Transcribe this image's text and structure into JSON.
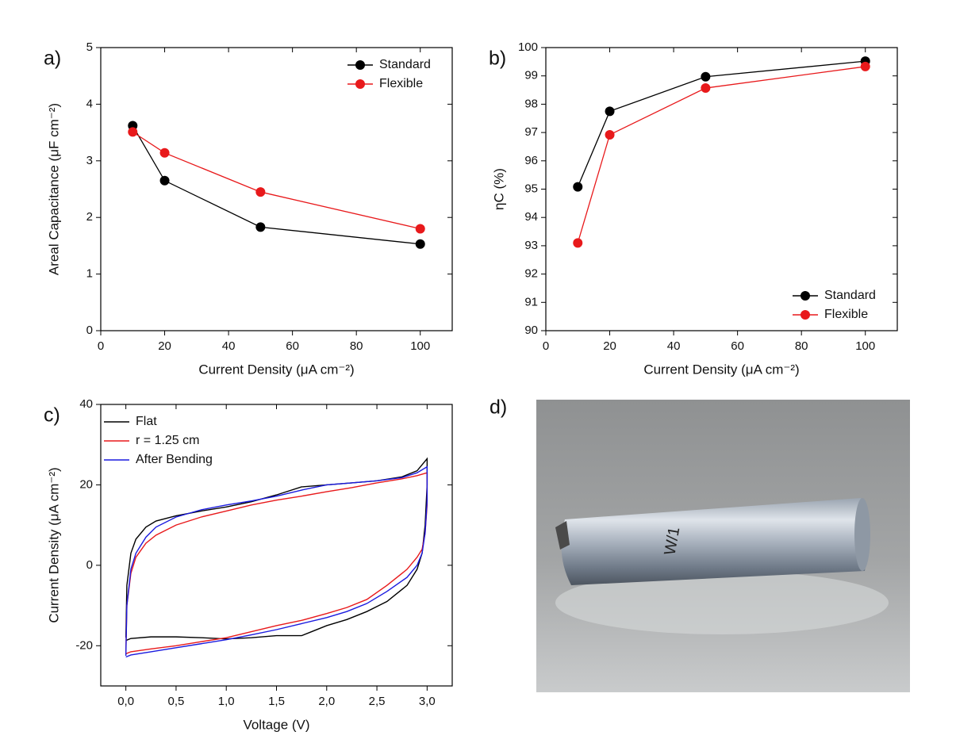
{
  "chart_data": [
    {
      "type": "line",
      "panel_label": "a)",
      "xlabel": "Current Density (μA cm⁻²)",
      "ylabel": "Areal Capacitance (μF cm⁻²)",
      "x": [
        10,
        20,
        50,
        100
      ],
      "series": [
        {
          "name": "Standard",
          "color": "#000000",
          "values": [
            3.62,
            2.65,
            1.83,
            1.53
          ]
        },
        {
          "name": "Flexible",
          "color": "#e8191b",
          "values": [
            3.51,
            3.14,
            2.45,
            1.8
          ]
        }
      ],
      "xlim": [
        0,
        110
      ],
      "xticks": [
        0,
        20,
        40,
        60,
        80,
        100
      ],
      "ylim": [
        0,
        5
      ],
      "yticks": [
        0,
        1,
        2,
        3,
        4,
        5
      ],
      "markers": true,
      "legend": "upper right"
    },
    {
      "type": "line",
      "panel_label": "b)",
      "xlabel": "Current Density (μA cm⁻²)",
      "ylabel": "ηC (%)",
      "x": [
        10,
        20,
        50,
        100
      ],
      "series": [
        {
          "name": "Standard",
          "color": "#000000",
          "values": [
            95.08,
            97.75,
            98.97,
            99.52
          ]
        },
        {
          "name": "Flexible",
          "color": "#e8191b",
          "values": [
            93.1,
            96.92,
            98.57,
            99.33
          ]
        }
      ],
      "xlim": [
        0,
        110
      ],
      "xticks": [
        0,
        20,
        40,
        60,
        80,
        100
      ],
      "ylim": [
        90,
        100
      ],
      "yticks": [
        90,
        91,
        92,
        93,
        94,
        95,
        96,
        97,
        98,
        99,
        100
      ],
      "markers": true,
      "legend": "lower right"
    },
    {
      "type": "line",
      "panel_label": "c)",
      "xlabel": "Voltage (V)",
      "ylabel": "Current Density (μA cm⁻²)",
      "series": [
        {
          "name": "Flat",
          "color": "#000000",
          "x": [
            0,
            0.01,
            0.05,
            0.1,
            0.2,
            0.3,
            0.5,
            0.75,
            1.0,
            1.25,
            1.5,
            1.75,
            2.0,
            2.25,
            2.5,
            2.75,
            2.9,
            3.0,
            3.0,
            2.98,
            2.95,
            2.9,
            2.8,
            2.6,
            2.4,
            2.2,
            2.0,
            1.85,
            1.75,
            1.65,
            1.5,
            1.25,
            1.0,
            0.75,
            0.5,
            0.25,
            0.05,
            0
          ],
          "values": [
            -18,
            -5,
            3,
            6.5,
            9.5,
            11,
            12.3,
            13.5,
            14.5,
            15.8,
            17.5,
            19.5,
            20,
            20.5,
            21,
            22,
            23.5,
            26.5,
            20,
            10,
            3,
            -1,
            -5,
            -9,
            -11.5,
            -13.5,
            -15,
            -16.5,
            -17.5,
            -17.5,
            -17.5,
            -18,
            -18.3,
            -18,
            -17.8,
            -17.8,
            -18.2,
            -18.7
          ]
        },
        {
          "name": "r = 1.25 cm",
          "color": "#e8191b",
          "x": [
            0,
            0.01,
            0.05,
            0.1,
            0.2,
            0.3,
            0.5,
            0.75,
            1.0,
            1.25,
            1.5,
            1.75,
            2.0,
            2.25,
            2.5,
            2.75,
            2.9,
            3.0,
            3.0,
            2.98,
            2.95,
            2.9,
            2.8,
            2.6,
            2.4,
            2.2,
            2.0,
            1.75,
            1.5,
            1.25,
            1.0,
            0.75,
            0.5,
            0.25,
            0.05,
            0
          ],
          "values": [
            -21.5,
            -10,
            -2,
            2,
            5.5,
            7.5,
            10,
            12,
            13.5,
            15,
            16.2,
            17.2,
            18.3,
            19.3,
            20.5,
            21.5,
            22.3,
            23,
            15,
            8,
            4,
            2,
            -1,
            -5,
            -8.5,
            -10.5,
            -12,
            -13.7,
            -15,
            -16.5,
            -18,
            -19,
            -20,
            -20.8,
            -21.5,
            -22
          ]
        },
        {
          "name": "After Bending",
          "color": "#1a1adf",
          "x": [
            0,
            0.01,
            0.05,
            0.1,
            0.2,
            0.3,
            0.5,
            0.75,
            1.0,
            1.25,
            1.5,
            1.75,
            2.0,
            2.25,
            2.5,
            2.75,
            2.9,
            3.0,
            3.0,
            2.98,
            2.95,
            2.9,
            2.8,
            2.6,
            2.4,
            2.2,
            2.0,
            1.75,
            1.5,
            1.25,
            1.0,
            0.75,
            0.5,
            0.25,
            0.05,
            0
          ],
          "values": [
            -22.5,
            -10,
            -1,
            3,
            7,
            9.5,
            12,
            13.8,
            15,
            16,
            17.2,
            18.7,
            20,
            20.5,
            21,
            21.8,
            23,
            24.5,
            16,
            8,
            3,
            0,
            -3,
            -6.5,
            -9.5,
            -11.5,
            -13,
            -14.5,
            -16,
            -17.3,
            -18.5,
            -19.5,
            -20.5,
            -21.5,
            -22.3,
            -22.8
          ]
        }
      ],
      "xlim": [
        -0.25,
        3.25
      ],
      "xticks": [
        {
          "value": 0,
          "label": "0,0"
        },
        {
          "value": 0.5,
          "label": "0,5"
        },
        {
          "value": 1,
          "label": "1,0"
        },
        {
          "value": 1.5,
          "label": "1,5"
        },
        {
          "value": 2,
          "label": "2,0"
        },
        {
          "value": 2.5,
          "label": "2,5"
        },
        {
          "value": 3,
          "label": "3,0"
        }
      ],
      "ylim": [
        -30,
        40
      ],
      "yticks": [
        -20,
        0,
        20,
        40
      ],
      "markers": false,
      "legend": "upper left"
    }
  ],
  "photo": {
    "panel_label": "d)",
    "inscription": "W/1"
  }
}
